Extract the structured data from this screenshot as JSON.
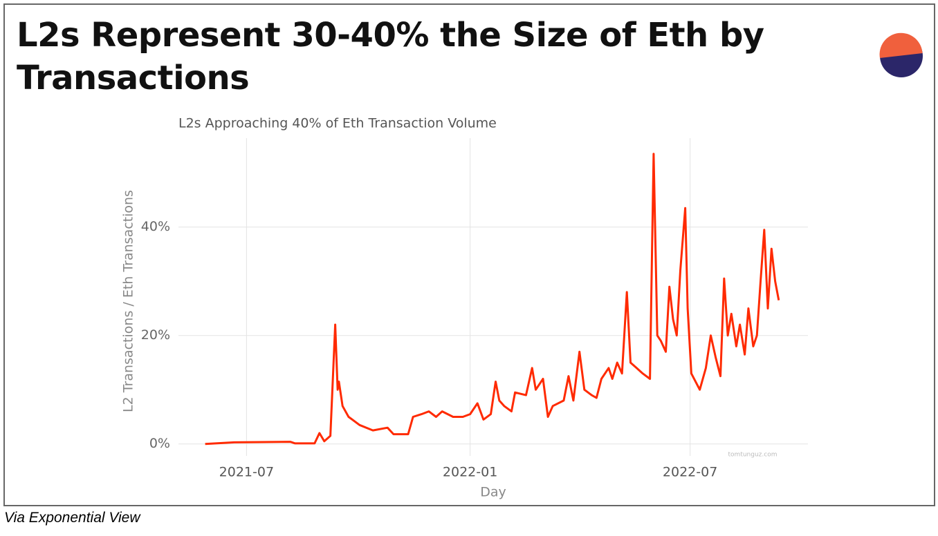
{
  "slide_title": "L2s Represent 30-40% the Size of Eth by Transactions",
  "caption": "Via Exponential View",
  "chart_data": {
    "type": "line",
    "title": "L2s Approaching 40% of Eth Transaction Volume",
    "xlabel": "Day",
    "ylabel": "L2 Transactions / Eth Transactions",
    "watermark": "tomtunguz.com",
    "color": "#ff2a00",
    "grid": true,
    "xlim": [
      "2021-05-06",
      "2022-10-06"
    ],
    "xticks": [
      "2021-07",
      "2022-01",
      "2022-07"
    ],
    "ylim": [
      -2.2,
      56.4
    ],
    "yticks": [
      {
        "value": 0,
        "label": "0%"
      },
      {
        "value": 20,
        "label": "20%"
      },
      {
        "value": 40,
        "label": "40%"
      }
    ],
    "x": [
      "2021-05-28",
      "2021-06-21",
      "2021-08-06",
      "2021-08-10",
      "2021-08-26",
      "2021-08-30",
      "2021-09-03",
      "2021-09-08",
      "2021-09-12",
      "2021-09-14",
      "2021-09-15",
      "2021-09-18",
      "2021-09-23",
      "2021-10-02",
      "2021-10-13",
      "2021-10-25",
      "2021-10-30",
      "2021-11-11",
      "2021-11-15",
      "2021-11-22",
      "2021-11-28",
      "2021-12-04",
      "2021-12-09",
      "2021-12-18",
      "2021-12-26",
      "2022-01-01",
      "2022-01-07",
      "2022-01-12",
      "2022-01-18",
      "2022-01-22",
      "2022-01-25",
      "2022-01-29",
      "2022-02-04",
      "2022-02-07",
      "2022-02-16",
      "2022-02-21",
      "2022-02-24",
      "2022-03-02",
      "2022-03-06",
      "2022-03-10",
      "2022-03-19",
      "2022-03-23",
      "2022-03-27",
      "2022-04-01",
      "2022-04-05",
      "2022-04-11",
      "2022-04-15",
      "2022-04-19",
      "2022-04-25",
      "2022-04-28",
      "2022-05-02",
      "2022-05-06",
      "2022-05-10",
      "2022-05-13",
      "2022-05-18",
      "2022-05-23",
      "2022-05-29",
      "2022-06-01",
      "2022-06-04",
      "2022-06-07",
      "2022-06-11",
      "2022-06-14",
      "2022-06-17",
      "2022-06-20",
      "2022-06-23",
      "2022-06-27",
      "2022-06-29",
      "2022-07-02",
      "2022-07-09",
      "2022-07-14",
      "2022-07-18",
      "2022-07-22",
      "2022-07-26",
      "2022-07-29",
      "2022-08-01",
      "2022-08-04",
      "2022-08-08",
      "2022-08-11",
      "2022-08-15",
      "2022-08-18",
      "2022-08-22",
      "2022-08-25",
      "2022-08-28",
      "2022-08-31",
      "2022-09-03",
      "2022-09-06",
      "2022-09-09",
      "2022-09-12"
    ],
    "values": [
      0,
      0.3,
      0.4,
      0.1,
      0.1,
      2,
      0.5,
      1.5,
      22,
      10,
      11.5,
      7,
      5,
      3.5,
      2.5,
      3,
      1.8,
      1.8,
      5,
      5.5,
      6,
      5,
      6,
      5,
      5,
      5.5,
      7.5,
      4.5,
      5.5,
      11.5,
      8,
      7,
      6,
      9.5,
      9,
      14,
      10,
      12,
      5,
      7,
      8,
      12.5,
      8,
      17,
      10,
      9,
      8.5,
      12,
      14,
      12,
      15,
      13,
      28,
      15,
      14,
      13,
      12,
      53.5,
      20,
      19,
      17,
      29,
      23,
      20,
      32,
      43.5,
      25,
      13,
      10,
      14,
      20,
      16,
      12.5,
      30.5,
      20,
      24,
      18,
      22,
      16.5,
      25,
      18,
      20,
      30,
      39.5,
      25,
      36,
      30,
      26.5
    ]
  }
}
